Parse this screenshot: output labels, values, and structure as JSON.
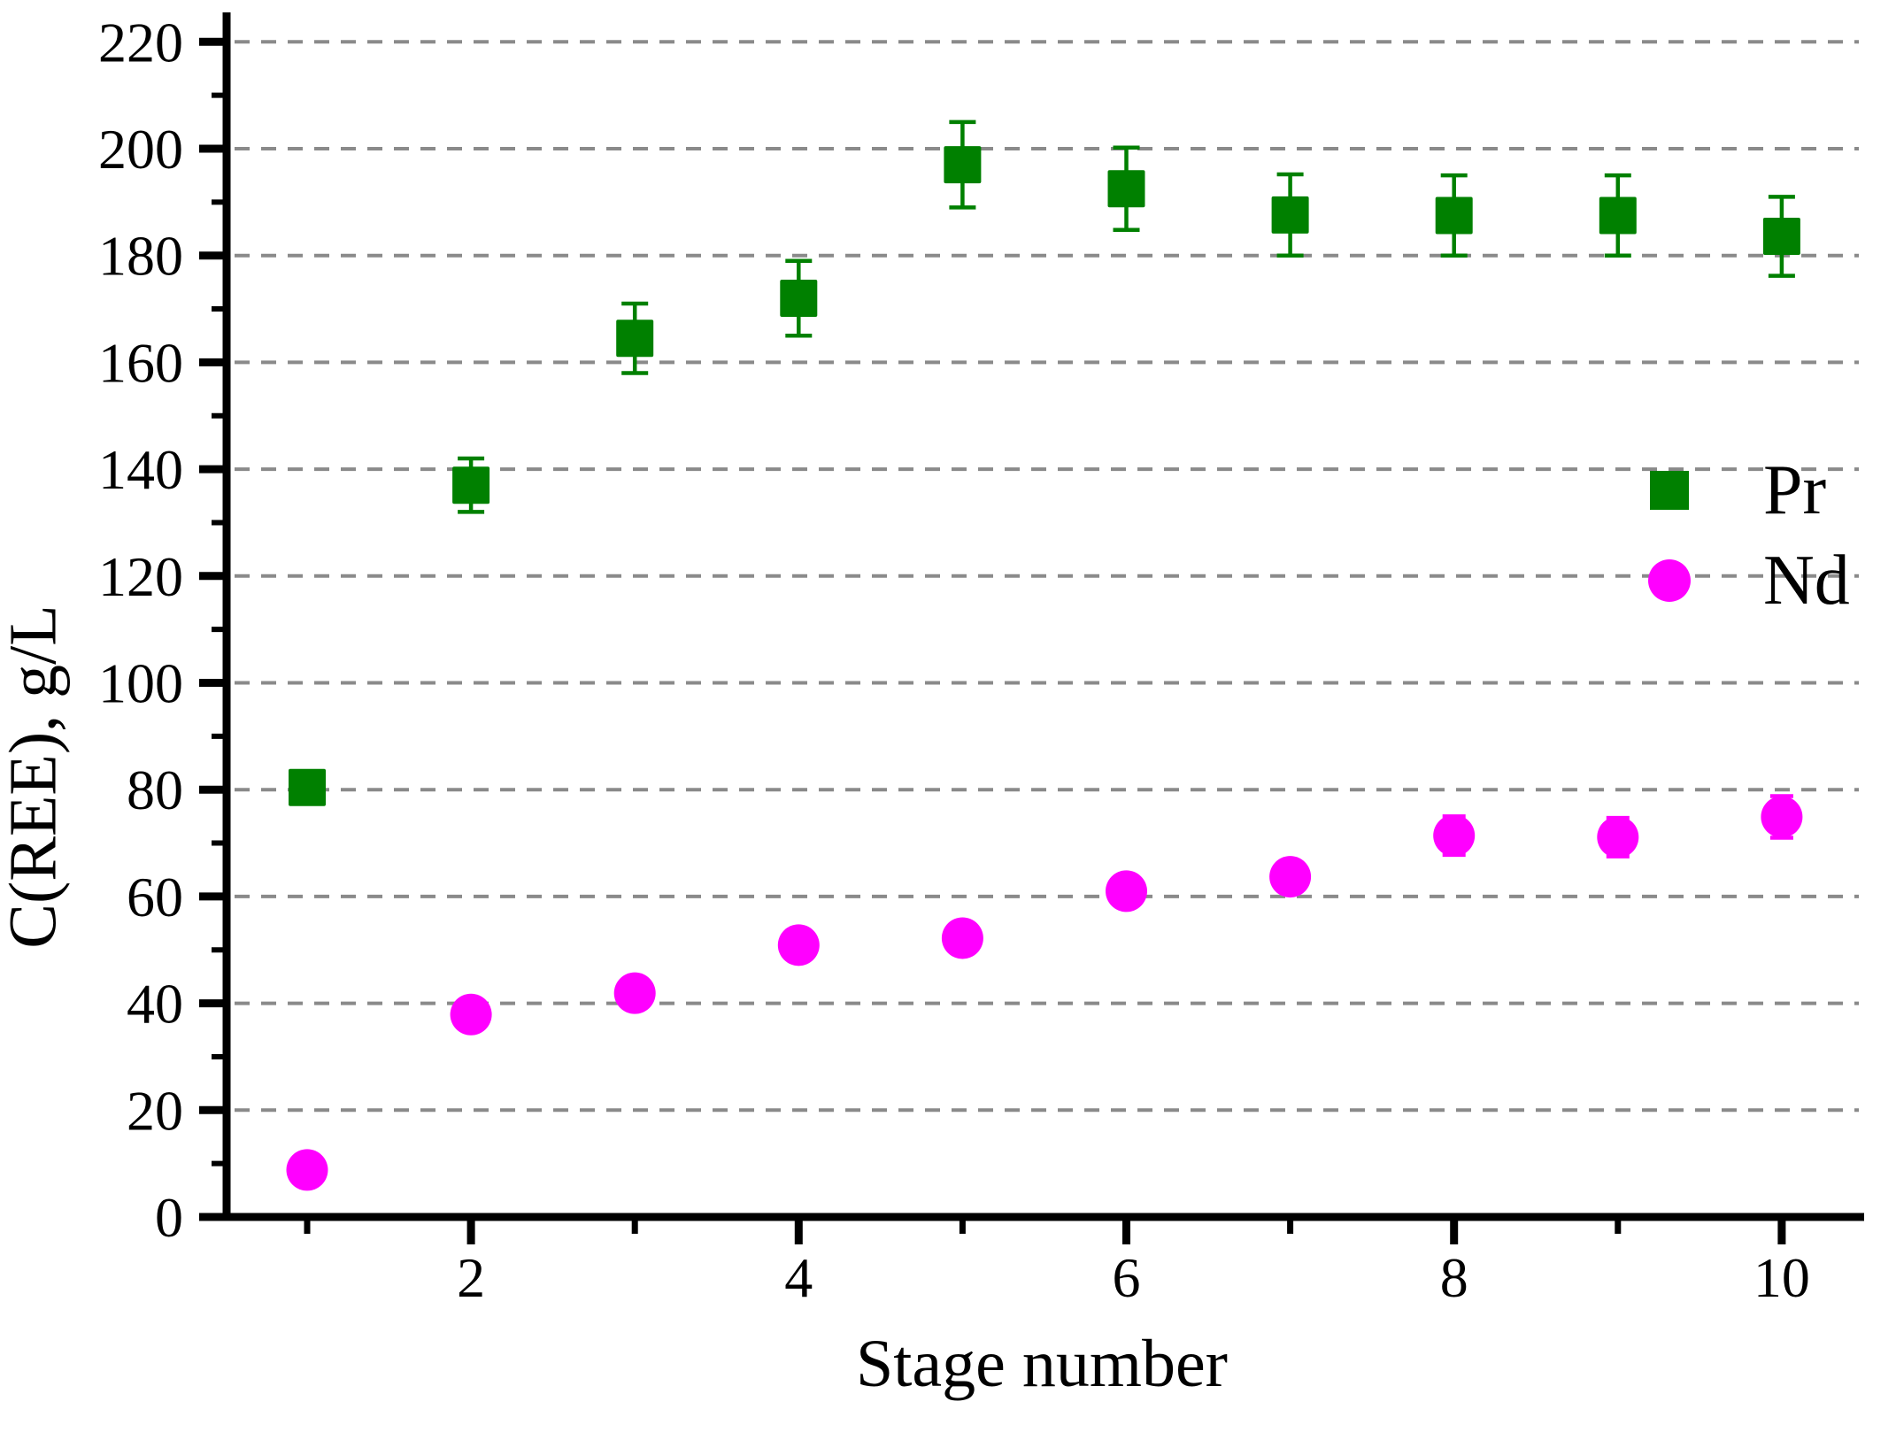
{
  "chart_data": {
    "type": "scatter",
    "title": "",
    "xlabel": "Stage number",
    "ylabel": "C(REE), g/L",
    "grid": "horizontal-dashed",
    "legend_position": "middle-right",
    "xlim": [
      0.48,
      10.5
    ],
    "ylim": [
      0,
      225
    ],
    "x": [
      1,
      2,
      3,
      4,
      5,
      6,
      7,
      8,
      9,
      10
    ],
    "xticks_labeled": [
      2,
      4,
      6,
      8,
      10
    ],
    "xticks_minor": [
      1,
      3,
      5,
      7,
      9
    ],
    "yticks_labeled": [
      0,
      20,
      40,
      60,
      80,
      100,
      120,
      140,
      160,
      180,
      200,
      220
    ],
    "ytick_step_minor": 10,
    "series": [
      {
        "name": "Pr",
        "marker": "square",
        "color": "#008000",
        "values": [
          80.4,
          137.0,
          164.5,
          172.0,
          197.0,
          192.5,
          187.6,
          187.5,
          187.5,
          183.6
        ],
        "errors": [
          0,
          5.0,
          6.5,
          7.0,
          8.0,
          7.7,
          7.6,
          7.5,
          7.5,
          7.4
        ]
      },
      {
        "name": "Nd",
        "marker": "circle",
        "color": "#FF00FF",
        "values": [
          8.8,
          37.9,
          41.9,
          50.9,
          52.2,
          61.0,
          63.7,
          71.4,
          71.1,
          74.9
        ],
        "errors": [
          0,
          0,
          0,
          0,
          0,
          0,
          0,
          3.6,
          3.6,
          3.9
        ]
      }
    ]
  },
  "colors": {
    "pr_green": "#008000",
    "nd_magenta": "#FF00FF",
    "gridline_gray": "#8a8a8a",
    "axis_black": "#000000",
    "background": "#ffffff"
  },
  "legend": {
    "entries": [
      {
        "label": "Pr"
      },
      {
        "label": "Nd"
      }
    ]
  }
}
